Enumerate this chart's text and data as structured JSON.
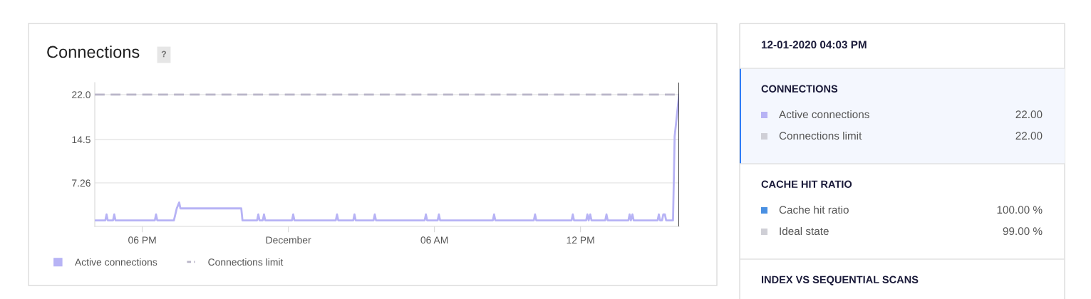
{
  "chart_data": [
    {
      "type": "line",
      "title": "Connections",
      "annotations": [
        "?"
      ],
      "xlim": [
        "2020-11-30T16:03",
        "2020-12-01T16:03"
      ],
      "xticks": [
        {
          "value": "2020-11-30T18:00",
          "label": "06 PM"
        },
        {
          "value": "2020-12-01T00:00",
          "label": "December"
        },
        {
          "value": "2020-12-01T06:00",
          "label": "06 AM"
        },
        {
          "value": "2020-12-01T12:00",
          "label": "12 PM"
        }
      ],
      "ylim": [
        0,
        24
      ],
      "yticks": [
        {
          "value": 7.26,
          "label": "7.26"
        },
        {
          "value": 14.5,
          "label": "14.5"
        },
        {
          "value": 22,
          "label": "22.0"
        }
      ],
      "grid": "y",
      "legend": "bottom",
      "ref_lines": [
        {
          "axis": "x",
          "value": "2020-12-01T16:03",
          "color": "#222222"
        }
      ],
      "series": [
        {
          "name": "Active connections",
          "color": "#b7b3f5",
          "line_style": "solid",
          "x": [
            "2020-11-30T16:03",
            "2020-11-30T16:29",
            "2020-11-30T16:32",
            "2020-11-30T16:35",
            "2020-11-30T16:48",
            "2020-11-30T16:51",
            "2020-11-30T16:54",
            "2020-11-30T18:31",
            "2020-11-30T18:34",
            "2020-11-30T18:37",
            "2020-11-30T19:18",
            "2020-11-30T19:25",
            "2020-11-30T19:31",
            "2020-11-30T19:34",
            "2020-11-30T22:04",
            "2020-11-30T22:07",
            "2020-11-30T22:43",
            "2020-11-30T22:46",
            "2020-11-30T22:49",
            "2020-11-30T22:57",
            "2020-11-30T23:00",
            "2020-11-30T23:03",
            "2020-12-01T00:09",
            "2020-12-01T00:12",
            "2020-12-01T00:15",
            "2020-12-01T01:57",
            "2020-12-01T02:00",
            "2020-12-01T02:03",
            "2020-12-01T02:40",
            "2020-12-01T02:43",
            "2020-12-01T02:46",
            "2020-12-01T03:30",
            "2020-12-01T03:33",
            "2020-12-01T03:36",
            "2020-12-01T05:36",
            "2020-12-01T05:39",
            "2020-12-01T05:42",
            "2020-12-01T06:08",
            "2020-12-01T06:11",
            "2020-12-01T06:14",
            "2020-12-01T08:24",
            "2020-12-01T08:27",
            "2020-12-01T08:30",
            "2020-12-01T10:05",
            "2020-12-01T10:08",
            "2020-12-01T10:11",
            "2020-12-01T11:38",
            "2020-12-01T11:41",
            "2020-12-01T11:44",
            "2020-12-01T12:14",
            "2020-12-01T12:17",
            "2020-12-01T12:20",
            "2020-12-01T12:24",
            "2020-12-01T12:27",
            "2020-12-01T13:01",
            "2020-12-01T13:04",
            "2020-12-01T13:07",
            "2020-12-01T13:58",
            "2020-12-01T14:01",
            "2020-12-01T14:04",
            "2020-12-01T14:08",
            "2020-12-01T14:11",
            "2020-12-01T15:10",
            "2020-12-01T15:13",
            "2020-12-01T15:16",
            "2020-12-01T15:21",
            "2020-12-01T15:24",
            "2020-12-01T15:28",
            "2020-12-01T15:31",
            "2020-12-01T15:48",
            "2020-12-01T15:52",
            "2020-12-01T16:03"
          ],
          "values": [
            1,
            1,
            2,
            1,
            1,
            2,
            1,
            1,
            2,
            1,
            1,
            3,
            4,
            3,
            3,
            1,
            1,
            2,
            1,
            1,
            2,
            1,
            1,
            2,
            1,
            1,
            2,
            1,
            1,
            2,
            1,
            1,
            2,
            1,
            1,
            2,
            1,
            1,
            2,
            1,
            1,
            2,
            1,
            1,
            2,
            1,
            1,
            2,
            1,
            1,
            2,
            1,
            2,
            1,
            1,
            2,
            1,
            1,
            2,
            1,
            2,
            1,
            1,
            2,
            1,
            1,
            2,
            2,
            1,
            1,
            15,
            22
          ]
        },
        {
          "name": "Connections limit",
          "color": "#b9b5c8",
          "line_style": "dashed",
          "x": [
            "2020-11-30T16:03",
            "2020-12-01T16:03"
          ],
          "values": [
            22,
            22
          ]
        }
      ]
    },
    {
      "type": "other",
      "title": "12-01-2020 04:03 PM",
      "annotations": [
        "CONNECTIONS",
        "CACHE HIT RATIO",
        "INDEX VS SEQUENTIAL SCANS"
      ],
      "categories": [
        "Active connections",
        "Connections limit",
        "Cache hit ratio",
        "Ideal state"
      ],
      "value_labels": [
        "22.00",
        "22.00",
        "100.00 %",
        "99.00 %"
      ],
      "colors": [
        "#b7b3f5",
        "#cfcfd6",
        "#4a90e2",
        "#cfcfd6"
      ]
    }
  ]
}
